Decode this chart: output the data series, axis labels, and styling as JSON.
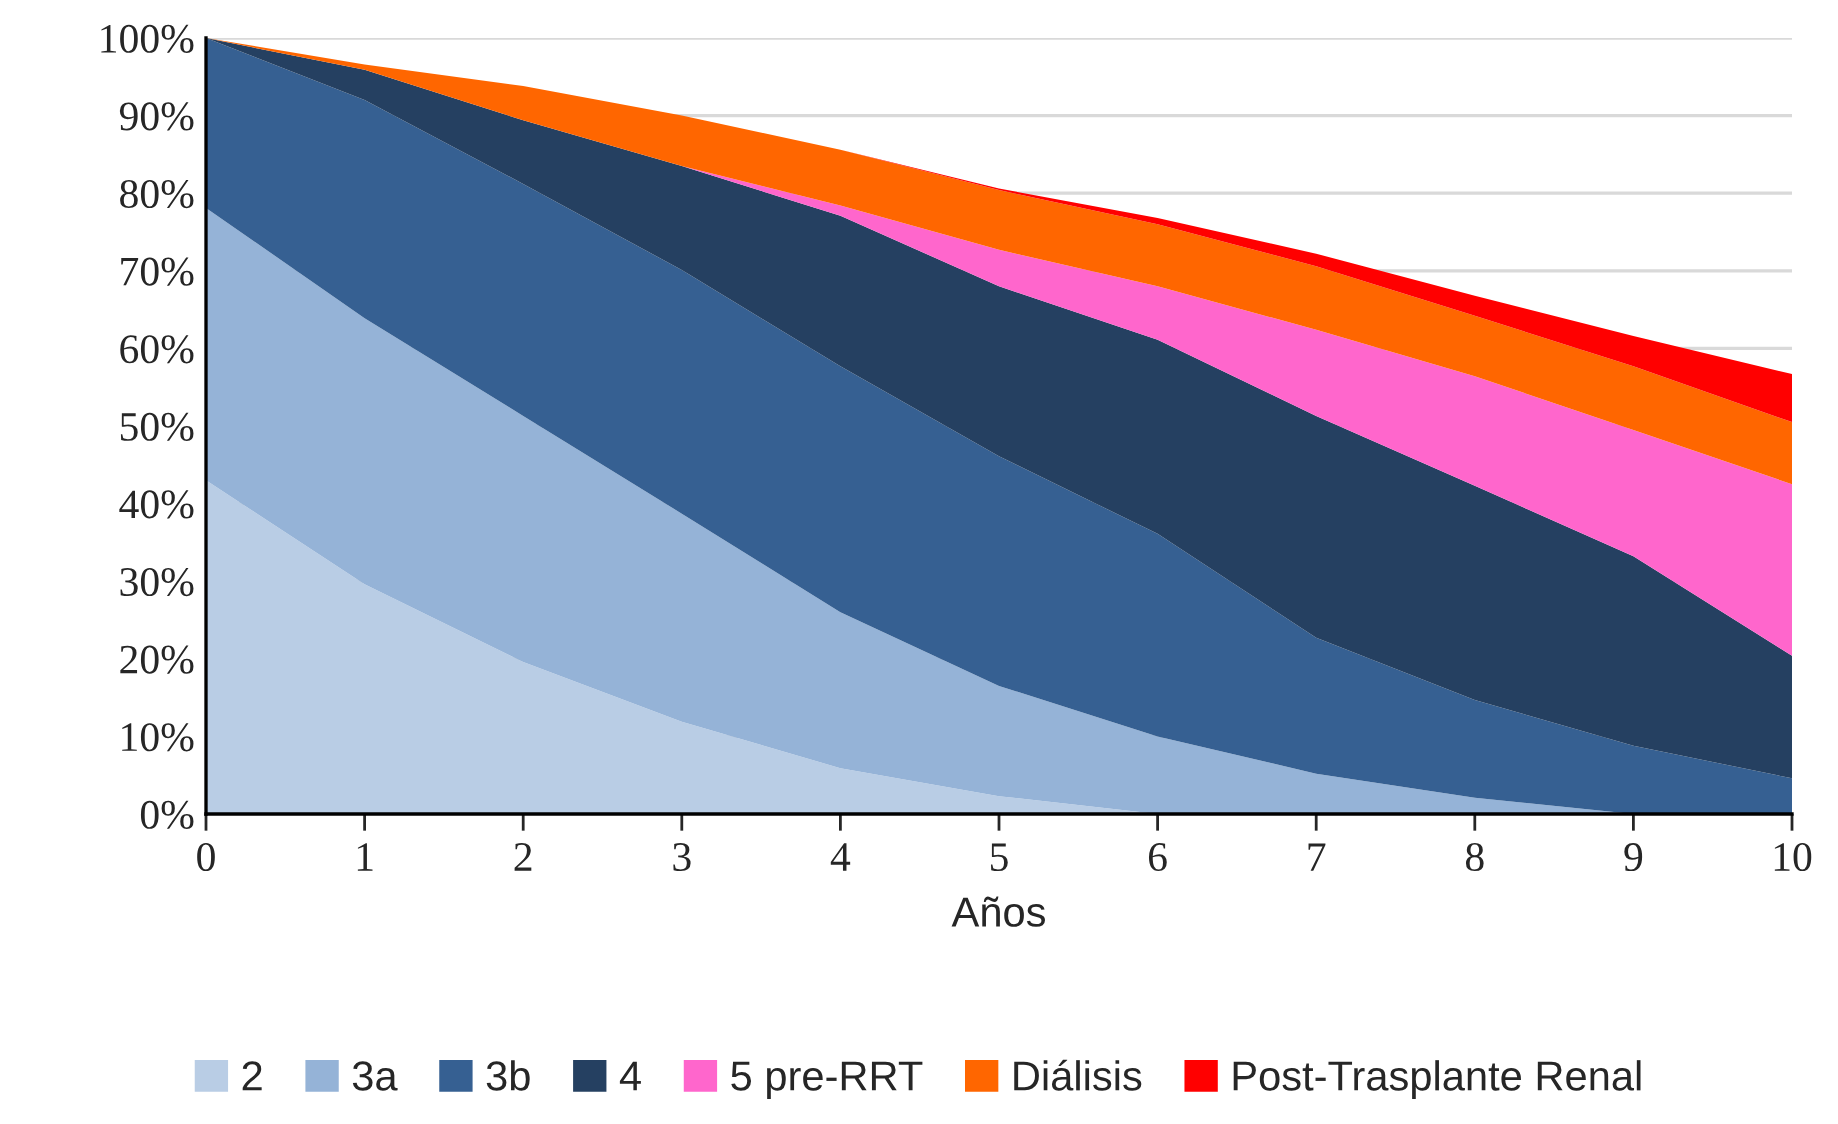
{
  "chart_data": {
    "type": "area",
    "stacked": true,
    "xlabel": "Años",
    "x": [
      0,
      1,
      2,
      3,
      4,
      5,
      6,
      7,
      8,
      9,
      10
    ],
    "series": [
      {
        "name": "2",
        "color": "#b9cde5",
        "values": [
          43,
          29.6,
          19.6,
          11.9,
          5.9,
          2.3,
          0,
          0,
          0,
          0,
          0
        ]
      },
      {
        "name": "3a",
        "color": "#95b3d7",
        "values": [
          35.1,
          34.3,
          31.7,
          26.8,
          20.1,
          14.2,
          10.0,
          5.2,
          2.1,
          0,
          0
        ]
      },
      {
        "name": "3b",
        "color": "#366092",
        "values": [
          21.9,
          28.1,
          29.9,
          31.4,
          31.7,
          29.6,
          26.1,
          17.5,
          12.6,
          8.8,
          4.6
        ]
      },
      {
        "name": "4",
        "color": "#254061",
        "values": [
          0,
          3.9,
          8.2,
          13.4,
          19.4,
          21.9,
          25.0,
          28.6,
          27.6,
          24.4,
          15.8
        ]
      },
      {
        "name": "5 pre-RRT",
        "color": "#ff66cc",
        "values": [
          0,
          0,
          0,
          0,
          1.3,
          4.7,
          6.9,
          11.1,
          14.1,
          16.3,
          22.1
        ]
      },
      {
        "name": "Diálisis",
        "color": "#ff6600",
        "values": [
          0,
          0.7,
          4.4,
          6.5,
          7.2,
          7.7,
          8.0,
          8.2,
          7.8,
          8.2,
          8.0
        ]
      },
      {
        "name": "Post-Trasplante Renal",
        "color": "#ff0000",
        "values": [
          0,
          0,
          0,
          0,
          0,
          0.2,
          0.8,
          1.6,
          2.6,
          3.9,
          6.2
        ]
      }
    ],
    "xlim": [
      0,
      10
    ],
    "xticks": [
      0,
      1,
      2,
      3,
      4,
      5,
      6,
      7,
      8,
      9,
      10
    ],
    "ylim": [
      0,
      100
    ],
    "yticks": [
      {
        "value": 0,
        "label": "0%"
      },
      {
        "value": 10,
        "label": "10%"
      },
      {
        "value": 20,
        "label": "20%"
      },
      {
        "value": 30,
        "label": "30%"
      },
      {
        "value": 40,
        "label": "40%"
      },
      {
        "value": 50,
        "label": "50%"
      },
      {
        "value": 60,
        "label": "60%"
      },
      {
        "value": 70,
        "label": "70%"
      },
      {
        "value": 80,
        "label": "80%"
      },
      {
        "value": 90,
        "label": "90%"
      },
      {
        "value": 100,
        "label": "100%"
      }
    ],
    "grid": "y",
    "legend": "bottom"
  }
}
